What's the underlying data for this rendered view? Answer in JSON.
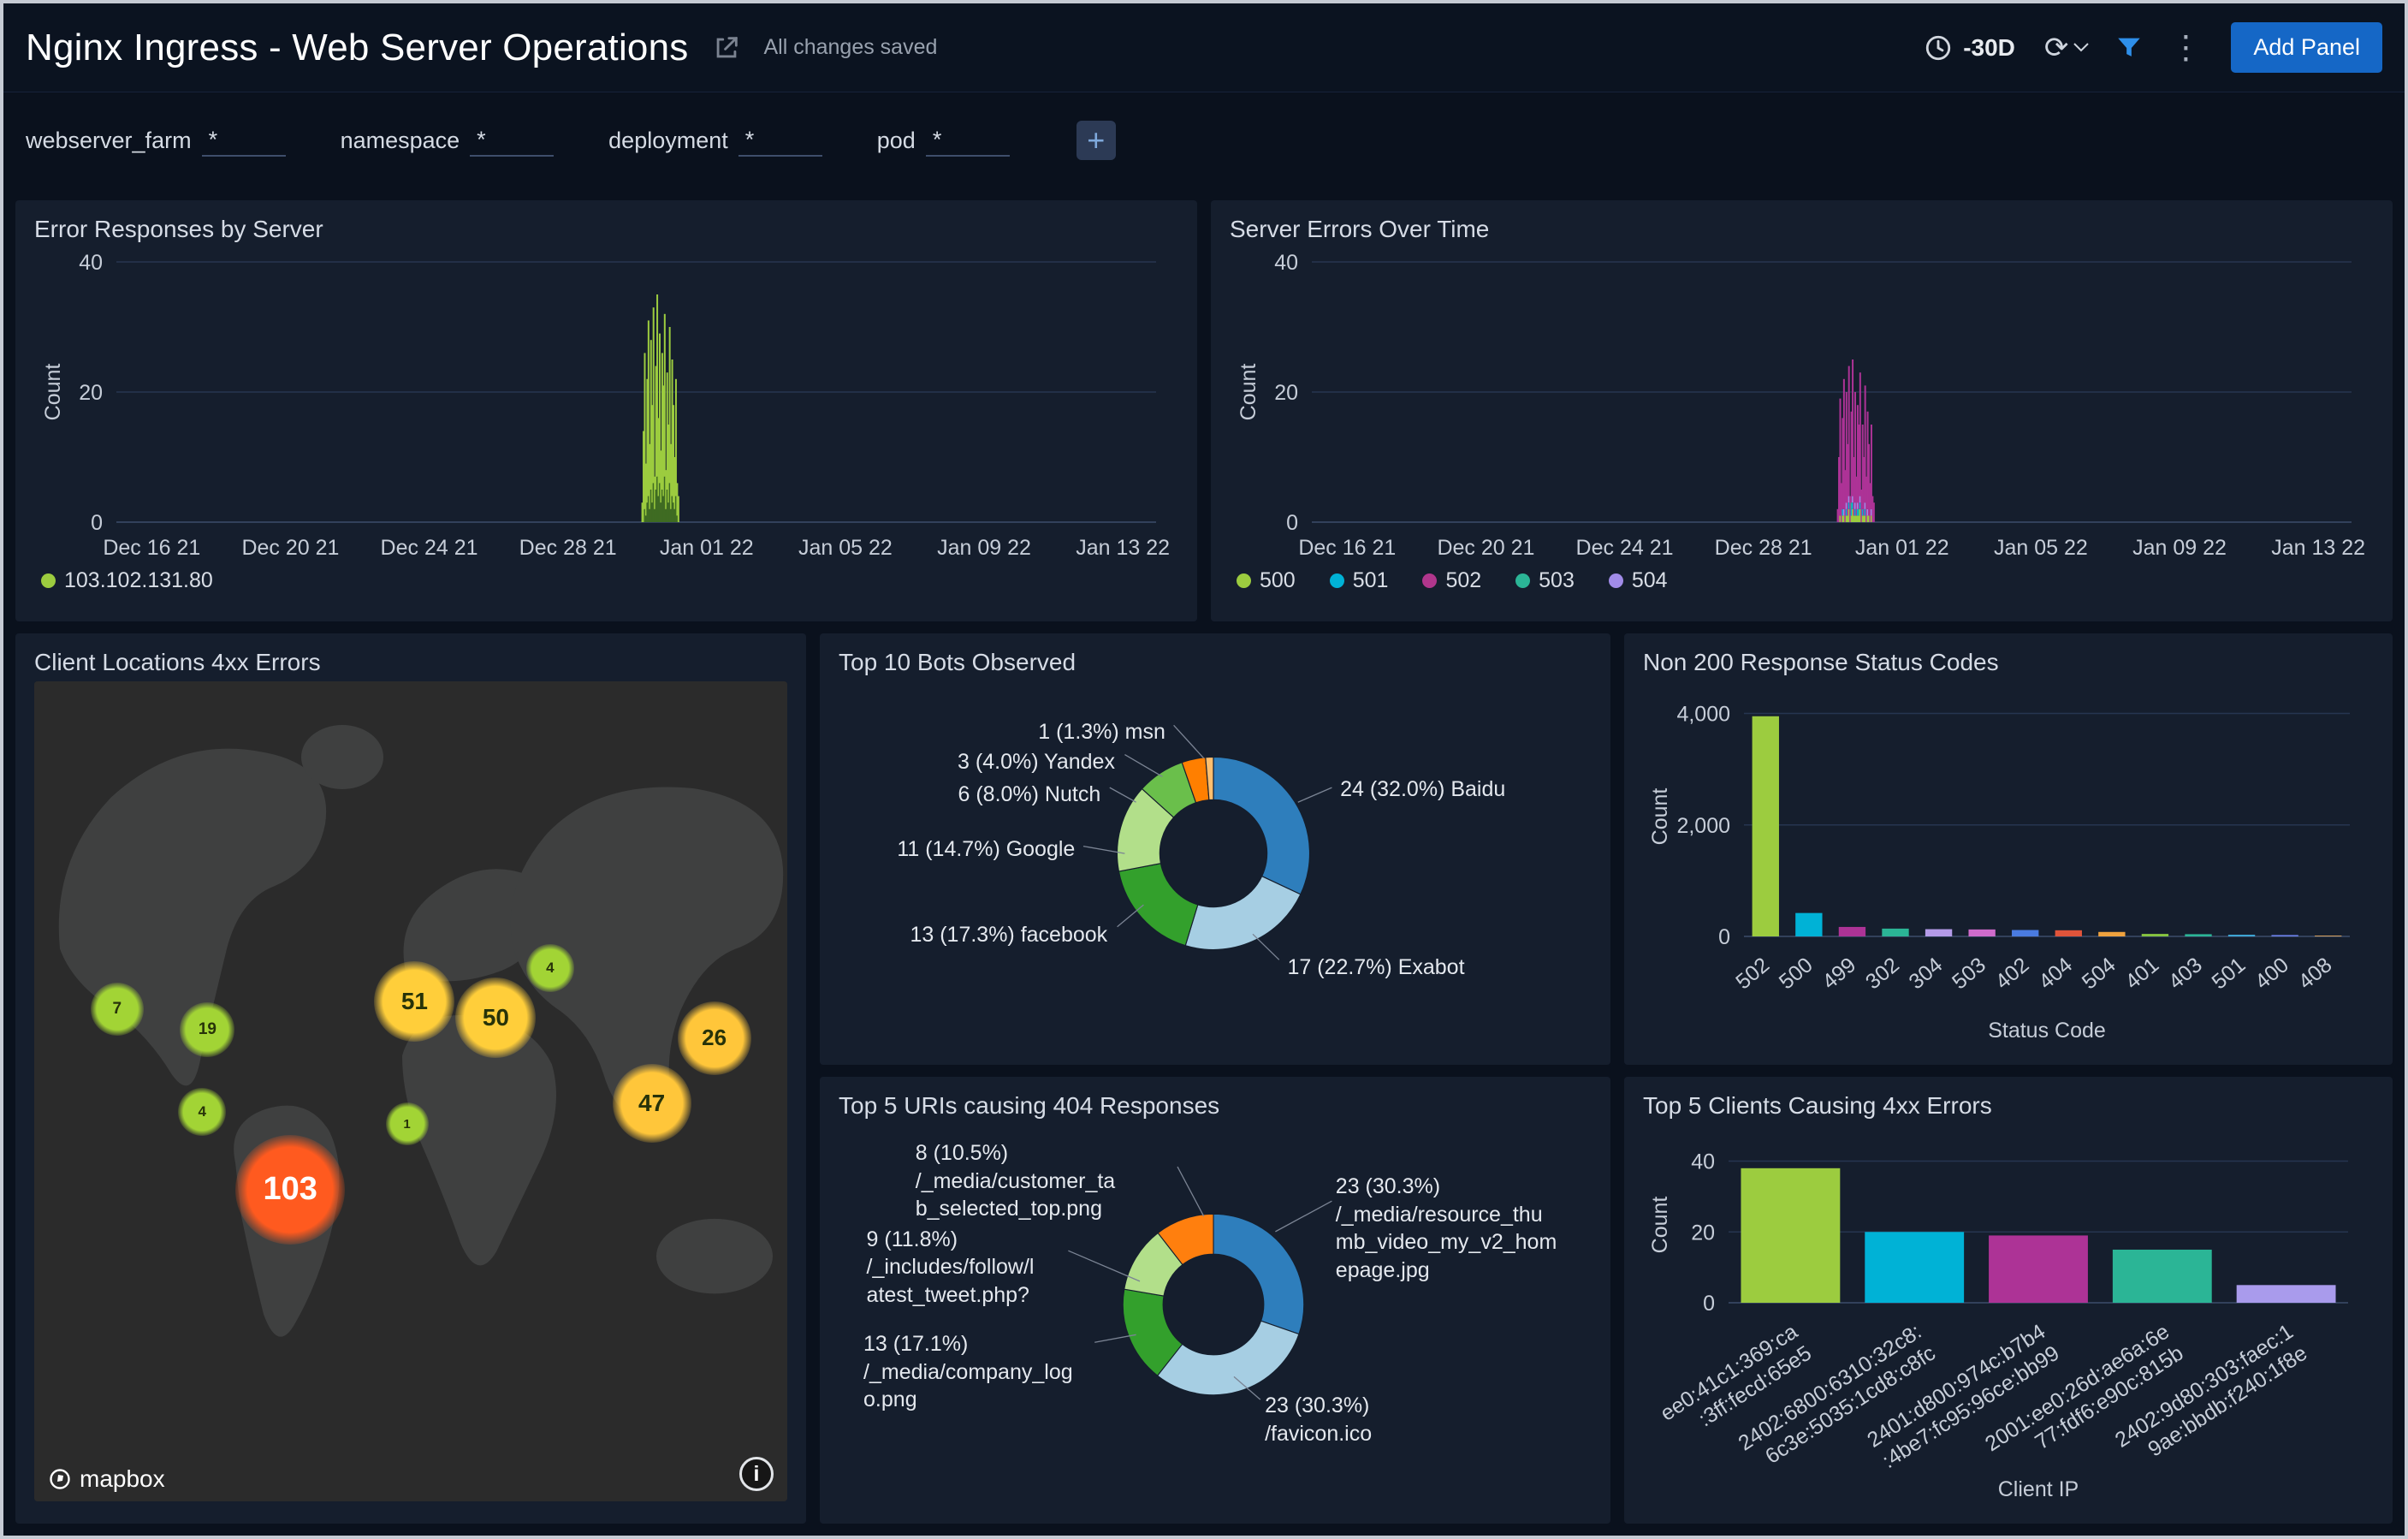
{
  "header": {
    "title": "Nginx Ingress - Web Server Operations",
    "saved_status": "All changes saved",
    "time_range": "-30D",
    "add_panel_label": "Add Panel"
  },
  "icons": {
    "share": "share-icon",
    "clock": "clock-icon",
    "refresh": "⟳",
    "filter": "filter-icon",
    "kebab": "⋮",
    "add_filter": "+",
    "info": "i"
  },
  "filters": {
    "items": [
      {
        "label": "webserver_farm",
        "value": "*"
      },
      {
        "label": "namespace",
        "value": "*"
      },
      {
        "label": "deployment",
        "value": "*"
      },
      {
        "label": "pod",
        "value": "*"
      }
    ]
  },
  "chart_data": [
    {
      "id": "error_responses_by_server",
      "type": "bar",
      "variant": "time",
      "title": "Error Responses by Server",
      "ylabel": "Count",
      "ylim": [
        0,
        40
      ],
      "yticks": [
        {
          "v": 0,
          "label": "0"
        },
        {
          "v": 20,
          "label": "20"
        },
        {
          "v": 40,
          "label": "40"
        }
      ],
      "xticks": [
        "Dec 16 21",
        "Dec 20 21",
        "Dec 24 21",
        "Dec 28 21",
        "Jan 01 22",
        "Jan 05 22",
        "Jan 09 22",
        "Jan 13 22"
      ],
      "colors": [
        "#3f6b22",
        "#9ccc3f"
      ],
      "bars": [
        [
          0,
          3
        ],
        [
          0,
          14
        ],
        [
          2,
          24
        ],
        [
          1,
          8
        ],
        [
          3,
          19
        ],
        [
          4,
          27
        ],
        [
          2,
          10
        ],
        [
          5,
          23
        ],
        [
          3,
          15
        ],
        [
          6,
          27
        ],
        [
          2,
          5
        ],
        [
          5,
          19
        ],
        [
          7,
          28
        ],
        [
          4,
          12
        ],
        [
          6,
          23
        ],
        [
          3,
          8
        ],
        [
          5,
          21
        ],
        [
          4,
          17
        ],
        [
          7,
          25
        ],
        [
          2,
          6
        ],
        [
          5,
          18
        ],
        [
          3,
          12
        ],
        [
          6,
          24
        ],
        [
          2,
          10
        ],
        [
          4,
          21
        ],
        [
          3,
          15
        ],
        [
          2,
          8
        ],
        [
          4,
          18
        ],
        [
          1,
          5
        ],
        [
          0,
          4
        ]
      ],
      "legend": [
        {
          "label": "103.102.131.80",
          "color": "#9ccc3f"
        }
      ]
    },
    {
      "id": "server_errors_over_time",
      "type": "bar",
      "variant": "time",
      "title": "Server Errors Over Time",
      "ylabel": "Count",
      "ylim": [
        0,
        40
      ],
      "yticks": [
        {
          "v": 0,
          "label": "0"
        },
        {
          "v": 20,
          "label": "20"
        },
        {
          "v": 40,
          "label": "40"
        }
      ],
      "xticks": [
        "Dec 16 21",
        "Dec 20 21",
        "Dec 24 21",
        "Dec 28 21",
        "Jan 01 22",
        "Jan 05 22",
        "Jan 09 22",
        "Jan 13 22"
      ],
      "colors": [
        "#9ccc3f",
        "#00b2d6",
        "#2bb596",
        "#a18ce8",
        "#ad3396"
      ],
      "bars": [
        [
          0,
          0,
          0,
          0,
          2
        ],
        [
          0,
          0,
          0,
          0,
          10
        ],
        [
          1,
          0,
          0,
          0,
          18
        ],
        [
          0,
          0,
          0,
          0,
          6
        ],
        [
          1,
          1,
          0,
          0,
          14
        ],
        [
          1,
          0,
          0,
          1,
          20
        ],
        [
          0,
          0,
          0,
          0,
          8
        ],
        [
          1,
          1,
          0,
          1,
          17
        ],
        [
          1,
          0,
          0,
          0,
          11
        ],
        [
          2,
          1,
          0,
          1,
          20
        ],
        [
          0,
          0,
          0,
          0,
          4
        ],
        [
          1,
          1,
          1,
          0,
          14
        ],
        [
          2,
          1,
          0,
          1,
          21
        ],
        [
          1,
          0,
          0,
          0,
          9
        ],
        [
          1,
          1,
          0,
          1,
          17
        ],
        [
          1,
          0,
          0,
          0,
          6
        ],
        [
          1,
          1,
          0,
          1,
          15
        ],
        [
          1,
          0,
          1,
          0,
          13
        ],
        [
          2,
          1,
          0,
          1,
          19
        ],
        [
          0,
          0,
          0,
          0,
          5
        ],
        [
          1,
          1,
          0,
          0,
          13
        ],
        [
          1,
          0,
          0,
          0,
          9
        ],
        [
          1,
          1,
          0,
          1,
          18
        ],
        [
          0,
          0,
          0,
          0,
          7
        ],
        [
          1,
          0,
          0,
          1,
          15
        ],
        [
          1,
          0,
          0,
          0,
          11
        ],
        [
          0,
          0,
          0,
          0,
          6
        ],
        [
          1,
          0,
          0,
          1,
          13
        ],
        [
          0,
          0,
          0,
          0,
          4
        ],
        [
          0,
          0,
          0,
          0,
          3
        ]
      ],
      "legend": [
        {
          "label": "500",
          "color": "#9ccc3f"
        },
        {
          "label": "501",
          "color": "#00b2d6"
        },
        {
          "label": "502",
          "color": "#b0368c"
        },
        {
          "label": "503",
          "color": "#2bb596"
        },
        {
          "label": "504",
          "color": "#a18ce8"
        }
      ]
    },
    {
      "id": "client_locations_4xx",
      "type": "map",
      "title": "Client Locations 4xx Errors",
      "attribution": "mapbox",
      "locations": [
        {
          "value": 7,
          "x": 11,
          "y": 40,
          "size": 62,
          "color": "#a2d435",
          "text": "dark"
        },
        {
          "value": 19,
          "x": 23,
          "y": 42.5,
          "size": 64,
          "color": "#a2d435",
          "text": "dark"
        },
        {
          "value": 4,
          "x": 22.3,
          "y": 52.5,
          "size": 56,
          "color": "#a2d435",
          "text": "dark"
        },
        {
          "value": 103,
          "x": 34,
          "y": 62,
          "size": 128,
          "color": "#ff5a1f",
          "text": "light"
        },
        {
          "value": 51,
          "x": 50.5,
          "y": 39,
          "size": 94,
          "color": "#ffce3a",
          "text": "dark"
        },
        {
          "value": 50,
          "x": 61.3,
          "y": 41,
          "size": 94,
          "color": "#ffce3a",
          "text": "dark"
        },
        {
          "value": 1,
          "x": 49.5,
          "y": 54,
          "size": 50,
          "color": "#a2d435",
          "text": "dark"
        },
        {
          "value": 4,
          "x": 68.5,
          "y": 35,
          "size": 56,
          "color": "#a2d435",
          "text": "dark"
        },
        {
          "value": 26,
          "x": 90.3,
          "y": 43.5,
          "size": 86,
          "color": "#ffc63a",
          "text": "dark"
        },
        {
          "value": 47,
          "x": 82,
          "y": 51.5,
          "size": 92,
          "color": "#ffc63a",
          "text": "dark"
        }
      ]
    },
    {
      "id": "top_bots_observed",
      "type": "pie",
      "variant": "donut",
      "title": "Top 10 Bots Observed",
      "slices": [
        {
          "name": "Baidu",
          "value": 24,
          "pct": 32.0,
          "color": "#2e7ebc"
        },
        {
          "name": "Exabot",
          "value": 17,
          "pct": 22.7,
          "color": "#a6cee3"
        },
        {
          "name": "facebook",
          "value": 13,
          "pct": 17.3,
          "color": "#33a02c"
        },
        {
          "name": "Google",
          "value": 11,
          "pct": 14.7,
          "color": "#b2df8a"
        },
        {
          "name": "Nutch",
          "value": 6,
          "pct": 8.0,
          "color": "#6abf4b"
        },
        {
          "name": "Yandex",
          "value": 3,
          "pct": 4.0,
          "color": "#ff7f00"
        },
        {
          "name": "msn",
          "value": 1,
          "pct": 1.3,
          "color": "#fdbf6f"
        }
      ],
      "labels": [
        "1 (1.3%) msn",
        "3 (4.0%) Yandex",
        "6 (8.0%) Nutch",
        "11 (14.7%) Google",
        "13 (17.3%) facebook",
        "24 (32.0%) Baidu",
        "17 (22.7%) Exabot"
      ]
    },
    {
      "id": "non_200_status_codes",
      "type": "bar",
      "variant": "category",
      "title": "Non 200 Response Status Codes",
      "xlabel": "Status Code",
      "ylabel": "Count",
      "ylim": [
        0,
        4300
      ],
      "yticks": [
        {
          "v": 0,
          "label": "0"
        },
        {
          "v": 2000,
          "label": "2,000"
        },
        {
          "v": 4000,
          "label": "4,000"
        }
      ],
      "categories": [
        "502",
        "500",
        "499",
        "302",
        "304",
        "503",
        "402",
        "404",
        "504",
        "401",
        "403",
        "501",
        "400",
        "408"
      ],
      "values": [
        3950,
        420,
        170,
        140,
        130,
        125,
        115,
        110,
        80,
        45,
        40,
        30,
        25,
        15
      ],
      "colors": [
        "#9ccc3f",
        "#00b2d6",
        "#ad3396",
        "#2bb596",
        "#b49be8",
        "#cf6bcb",
        "#4a7be0",
        "#e0543a",
        "#efa23e",
        "#86c440",
        "#2bb596",
        "#3fa8d6",
        "#6b7fe8",
        "#d8a05a"
      ]
    },
    {
      "id": "top_5_uris_404",
      "type": "pie",
      "variant": "donut",
      "title": "Top 5 URIs causing 404 Responses",
      "slices": [
        {
          "name": "/_media/resource_thumb_video_my_v2_homepage.jpg",
          "value": 23,
          "pct": 30.3,
          "color": "#2e7ebc"
        },
        {
          "name": "/favicon.ico",
          "value": 23,
          "pct": 30.3,
          "color": "#a6cee3"
        },
        {
          "name": "/_media/company_logo.png",
          "value": 13,
          "pct": 17.1,
          "color": "#33a02c"
        },
        {
          "name": "/_includes/follow/latest_tweet.php?",
          "value": 9,
          "pct": 11.8,
          "color": "#b2df8a"
        },
        {
          "name": "/_media/customer_tab_selected_top.png",
          "value": 8,
          "pct": 10.5,
          "color": "#ff7f0e"
        }
      ],
      "labels": [
        "8 (10.5%)\n/_media/customer_ta\nb_selected_top.png",
        "9 (11.8%)\n/_includes/follow/l\natest_tweet.php?",
        "13 (17.1%)\n/_media/company_log\no.png",
        "23 (30.3%)\n/_media/resource_thu\nmb_video_my_v2_hom\nepage.jpg",
        "23 (30.3%)\n/favicon.ico"
      ]
    },
    {
      "id": "top_5_clients_4xx",
      "type": "bar",
      "variant": "category",
      "title": "Top 5 Clients Causing 4xx Errors",
      "xlabel": "Client IP",
      "ylabel": "Count",
      "ylim": [
        0,
        44
      ],
      "yticks": [
        {
          "v": 0,
          "label": "0"
        },
        {
          "v": 20,
          "label": "20"
        },
        {
          "v": 40,
          "label": "40"
        }
      ],
      "categories": [
        "ee0:41c1:369:ca\n:3ff:fecd:65e5",
        "2402:6800:6310:32c8:\n6c3e:5035:1cd8:c8fc",
        "2401:d800:974c:b7b4\n:4be7:fc95:96ce:bb99",
        "2001:ee0:26d:ae6a:6e\n77:fdf6:e90c:815b",
        "2402:9d80:303:faec:1\n9ae:bbdb:f240:1f8e"
      ],
      "values": [
        38,
        20,
        19,
        15,
        5
      ],
      "colors": [
        "#9ccc3f",
        "#00b2d6",
        "#ad3396",
        "#2bb596",
        "#a99bec"
      ]
    }
  ]
}
